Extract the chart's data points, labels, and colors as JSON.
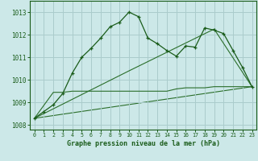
{
  "title": "Graphe pression niveau de la mer (hPa)",
  "bg_color": "#cce8e8",
  "grid_color": "#aacccc",
  "line_color_main": "#1a5c1a",
  "line_color_secondary": "#2a6e2a",
  "xlim": [
    -0.5,
    23.5
  ],
  "ylim": [
    1007.8,
    1013.5
  ],
  "yticks": [
    1008,
    1009,
    1010,
    1011,
    1012,
    1013
  ],
  "xticks": [
    0,
    1,
    2,
    3,
    4,
    5,
    6,
    7,
    8,
    9,
    10,
    11,
    12,
    13,
    14,
    15,
    16,
    17,
    18,
    19,
    20,
    21,
    22,
    23
  ],
  "series1_x": [
    0,
    1,
    2,
    3,
    4,
    5,
    6,
    7,
    8,
    9,
    10,
    11,
    12,
    13,
    14,
    15,
    16,
    17,
    18,
    19,
    20,
    21,
    22,
    23
  ],
  "series1_y": [
    1008.3,
    1008.6,
    1008.9,
    1009.4,
    1010.3,
    1011.0,
    1011.4,
    1011.85,
    1012.35,
    1012.55,
    1013.0,
    1012.8,
    1011.85,
    1011.6,
    1011.3,
    1011.05,
    1011.5,
    1011.45,
    1012.3,
    1012.2,
    1012.05,
    1011.3,
    1010.55,
    1009.7
  ],
  "series2_x": [
    0,
    2,
    3,
    4,
    5,
    6,
    7,
    8,
    9,
    10,
    11,
    12,
    13,
    14,
    15,
    16,
    17,
    18,
    19,
    20,
    21,
    22,
    23
  ],
  "series2_y": [
    1008.3,
    1009.45,
    1009.45,
    1009.5,
    1009.5,
    1009.5,
    1009.5,
    1009.5,
    1009.5,
    1009.5,
    1009.5,
    1009.5,
    1009.5,
    1009.5,
    1009.6,
    1009.65,
    1009.65,
    1009.65,
    1009.7,
    1009.7,
    1009.7,
    1009.7,
    1009.7
  ],
  "series3_x": [
    0,
    23
  ],
  "series3_y": [
    1008.3,
    1009.7
  ],
  "series4_x": [
    0,
    10,
    19,
    23
  ],
  "series4_y": [
    1008.3,
    1010.4,
    1012.25,
    1009.7
  ]
}
